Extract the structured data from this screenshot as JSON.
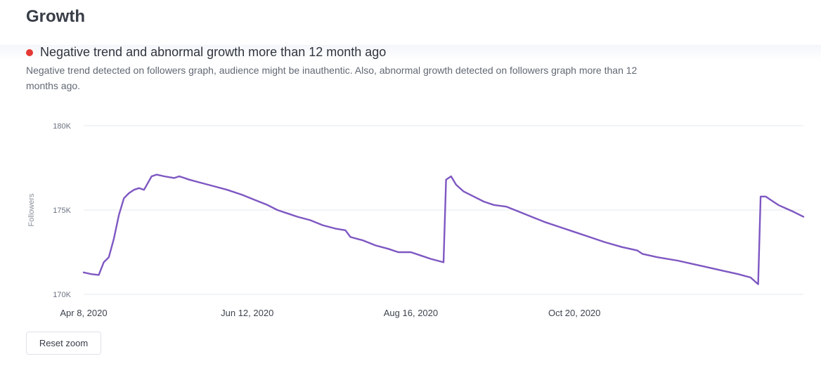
{
  "section": {
    "title": "Growth"
  },
  "alert": {
    "dot_color": "#e53935",
    "title": "Negative trend and abnormal growth more than 12 month ago",
    "description": "Negative trend detected on followers graph, audience might be inauthentic. Also, abnormal growth detected on followers graph more than 12 months ago."
  },
  "controls": {
    "reset_zoom_label": "Reset zoom"
  },
  "chart_data": {
    "type": "line",
    "ylabel": "Followers",
    "ylim": [
      170000,
      180000
    ],
    "yticks": [
      {
        "value": 170000,
        "label": "170K"
      },
      {
        "value": 175000,
        "label": "175K"
      },
      {
        "value": 180000,
        "label": "180K"
      }
    ],
    "xticks": [
      "Apr 8, 2020",
      "Jun 12, 2020",
      "Aug 16, 2020",
      "Oct 20, 2020"
    ],
    "xrange": [
      "2020-04-08",
      "2021-01-19"
    ],
    "grid": true,
    "line_color": "#7e57c2",
    "series": [
      {
        "values": [
          [
            "2020-04-08",
            171300
          ],
          [
            "2020-04-11",
            171200
          ],
          [
            "2020-04-14",
            171150
          ],
          [
            "2020-04-16",
            171900
          ],
          [
            "2020-04-18",
            172200
          ],
          [
            "2020-04-20",
            173300
          ],
          [
            "2020-04-22",
            174700
          ],
          [
            "2020-04-24",
            175700
          ],
          [
            "2020-04-26",
            176000
          ],
          [
            "2020-04-28",
            176200
          ],
          [
            "2020-04-30",
            176300
          ],
          [
            "2020-05-02",
            176200
          ],
          [
            "2020-05-05",
            177000
          ],
          [
            "2020-05-07",
            177100
          ],
          [
            "2020-05-10",
            177000
          ],
          [
            "2020-05-14",
            176900
          ],
          [
            "2020-05-16",
            177000
          ],
          [
            "2020-05-20",
            176800
          ],
          [
            "2020-05-25",
            176600
          ],
          [
            "2020-05-30",
            176400
          ],
          [
            "2020-06-04",
            176200
          ],
          [
            "2020-06-10",
            175900
          ],
          [
            "2020-06-15",
            175600
          ],
          [
            "2020-06-20",
            175300
          ],
          [
            "2020-06-24",
            175000
          ],
          [
            "2020-06-28",
            174800
          ],
          [
            "2020-07-02",
            174600
          ],
          [
            "2020-07-07",
            174400
          ],
          [
            "2020-07-12",
            174100
          ],
          [
            "2020-07-17",
            173900
          ],
          [
            "2020-07-21",
            173800
          ],
          [
            "2020-07-23",
            173400
          ],
          [
            "2020-07-28",
            173200
          ],
          [
            "2020-08-02",
            172900
          ],
          [
            "2020-08-07",
            172700
          ],
          [
            "2020-08-11",
            172500
          ],
          [
            "2020-08-16",
            172500
          ],
          [
            "2020-08-20",
            172300
          ],
          [
            "2020-08-24",
            172100
          ],
          [
            "2020-08-29",
            171900
          ],
          [
            "2020-08-30",
            176800
          ],
          [
            "2020-09-01",
            177000
          ],
          [
            "2020-09-03",
            176500
          ],
          [
            "2020-09-06",
            176100
          ],
          [
            "2020-09-10",
            175800
          ],
          [
            "2020-09-14",
            175500
          ],
          [
            "2020-09-18",
            175300
          ],
          [
            "2020-09-23",
            175200
          ],
          [
            "2020-09-28",
            174900
          ],
          [
            "2020-10-03",
            174600
          ],
          [
            "2020-10-08",
            174300
          ],
          [
            "2020-10-14",
            174000
          ],
          [
            "2020-10-20",
            173700
          ],
          [
            "2020-10-26",
            173400
          ],
          [
            "2020-11-01",
            173100
          ],
          [
            "2020-11-08",
            172800
          ],
          [
            "2020-11-14",
            172600
          ],
          [
            "2020-11-16",
            172400
          ],
          [
            "2020-11-22",
            172200
          ],
          [
            "2020-11-30",
            172000
          ],
          [
            "2020-12-06",
            171800
          ],
          [
            "2020-12-12",
            171600
          ],
          [
            "2020-12-18",
            171400
          ],
          [
            "2020-12-24",
            171200
          ],
          [
            "2020-12-29",
            171000
          ],
          [
            "2021-01-01",
            170600
          ],
          [
            "2021-01-02",
            175800
          ],
          [
            "2021-01-04",
            175800
          ],
          [
            "2021-01-06",
            175600
          ],
          [
            "2021-01-09",
            175300
          ],
          [
            "2021-01-12",
            175100
          ],
          [
            "2021-01-15",
            174900
          ],
          [
            "2021-01-19",
            174600
          ]
        ]
      }
    ]
  }
}
